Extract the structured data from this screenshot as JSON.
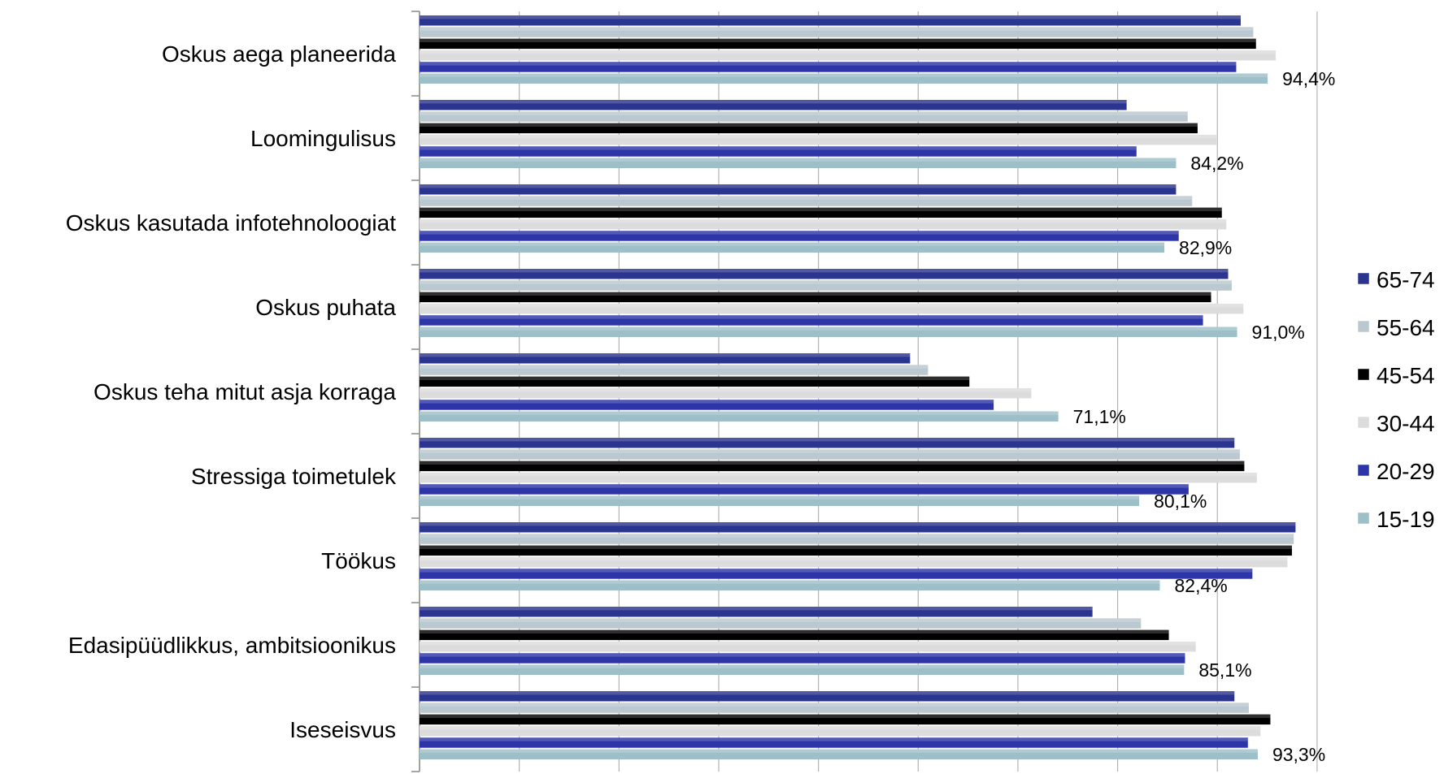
{
  "chart_data": {
    "type": "bar",
    "orientation": "horizontal",
    "categories": [
      "Oskus aega planeerida",
      "Loomingulisus",
      "Oskus kasutada infotehnoloogiat",
      "Oskus puhata",
      "Oskus teha mitut asja korraga",
      "Stressiga toimetulek",
      "Töökus",
      "Edasipüüdlikkus, ambitsioonikus",
      "Iseseisvus"
    ],
    "series": [
      {
        "name": "65-74",
        "color": "#2b3590",
        "values": [
          91.4,
          78.7,
          84.2,
          90.0,
          54.6,
          90.7,
          97.5,
          74.9,
          90.7
        ]
      },
      {
        "name": "55-64",
        "color": "#bac9cf",
        "values": [
          92.8,
          85.5,
          86.0,
          90.4,
          56.6,
          91.3,
          97.3,
          80.3,
          92.3
        ]
      },
      {
        "name": "45-54",
        "color": "#000000",
        "values": [
          93.1,
          86.6,
          89.3,
          88.1,
          61.2,
          91.8,
          97.1,
          83.4,
          94.7
        ]
      },
      {
        "name": "30-44",
        "color": "#dcdcdc",
        "values": [
          95.3,
          88.7,
          89.8,
          91.7,
          68.1,
          93.2,
          96.6,
          86.4,
          93.6
        ]
      },
      {
        "name": "20-29",
        "color": "#2e35a8",
        "values": [
          90.9,
          79.8,
          84.5,
          87.2,
          63.9,
          85.6,
          92.7,
          85.2,
          92.2
        ]
      },
      {
        "name": "15-19",
        "color": "#9dbfc8",
        "values": [
          94.4,
          84.2,
          82.9,
          91.0,
          71.1,
          80.1,
          82.4,
          85.1,
          93.3
        ]
      }
    ],
    "data_labels": [
      "94,4%",
      "84,2%",
      "82,9%",
      "91,0%",
      "71,1%",
      "80,1%",
      "82,4%",
      "85,1%",
      "93,3%"
    ],
    "xlim": [
      0,
      100
    ],
    "grid": true,
    "legend": "right"
  }
}
